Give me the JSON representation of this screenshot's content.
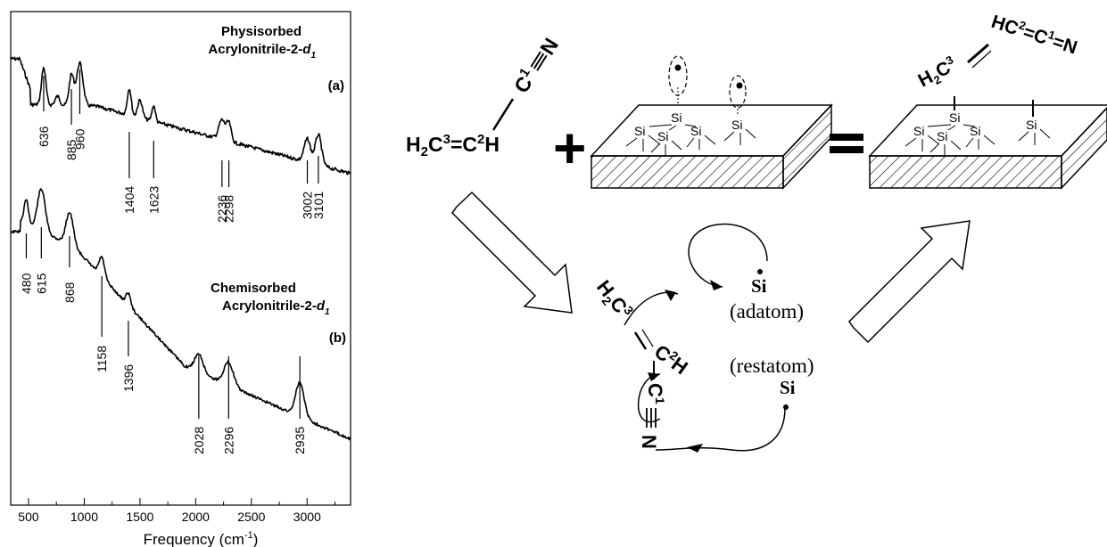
{
  "spectrum_panel": {
    "xaxis_title": "Frequency (cm",
    "xaxis_exp": "-1",
    "xaxis_close": ")",
    "x_ticks": [
      "500",
      "1000",
      "1500",
      "2000",
      "2500",
      "3000"
    ],
    "label_a": "(a)",
    "label_b": "(b)",
    "title_a_line1": "Physisorbed",
    "title_a_line2": "Acrylonitrile-2-",
    "title_b_line1": "Chemisorbed",
    "title_b_line2": "Acrylonitrile-2-",
    "title_suffix_d": "d",
    "title_suffix_sub": "1",
    "peaks_a": [
      "636",
      "885",
      "960",
      "1404",
      "1623",
      "2236",
      "2298",
      "3002",
      "3101"
    ],
    "peaks_b": [
      "480",
      "615",
      "868",
      "1158",
      "1396",
      "2028",
      "2296",
      "2935"
    ]
  },
  "chart_data": {
    "type": "line",
    "xlim": [
      340,
      3390
    ],
    "x_ticks": [
      500,
      1000,
      1500,
      2000,
      2500,
      3000
    ],
    "xlabel": "Frequency (cm-1)",
    "ylabel": "",
    "grid": false,
    "series": [
      {
        "name": "Physisorbed Acrylonitrile-2-d1",
        "label": "(a)",
        "peaks": [
          636,
          885,
          960,
          1404,
          1623,
          2236,
          2298,
          3002,
          3101
        ]
      },
      {
        "name": "Chemisorbed Acrylonitrile-2-d1",
        "label": "(b)",
        "peaks": [
          480,
          615,
          868,
          1158,
          1396,
          2028,
          2296,
          2935
        ]
      }
    ]
  },
  "scheme": {
    "molecule": {
      "h2c": "H",
      "h2c_sub": "2",
      "c3": "C",
      "c3_sup": "3",
      "c2": "C",
      "c2_sup": "2",
      "h": "H",
      "c1": "C",
      "c1_sup": "1",
      "n": "N"
    },
    "plus_sign": "+",
    "equals_sign": "=",
    "si_label": "Si",
    "adatom_si": "Si",
    "adatom_label": "(adatom)",
    "restatom_label": "(restatom)",
    "restatom_si": "Si",
    "product": {
      "h": "H",
      "h_sub": "2",
      "c3": "C",
      "c3_sup": "3",
      "hc2_h": "H",
      "c2": "C",
      "c2_sup": "2",
      "c1": "C",
      "c1_sup": "1",
      "n": "N"
    },
    "intermediate": {
      "h": "H",
      "h_sub": "2",
      "c3": "C",
      "c3_sup": "3",
      "c2": "C",
      "c2_sup": "2",
      "c2h": "H",
      "c1": "C",
      "c1_sup": "1",
      "n": "N"
    }
  }
}
